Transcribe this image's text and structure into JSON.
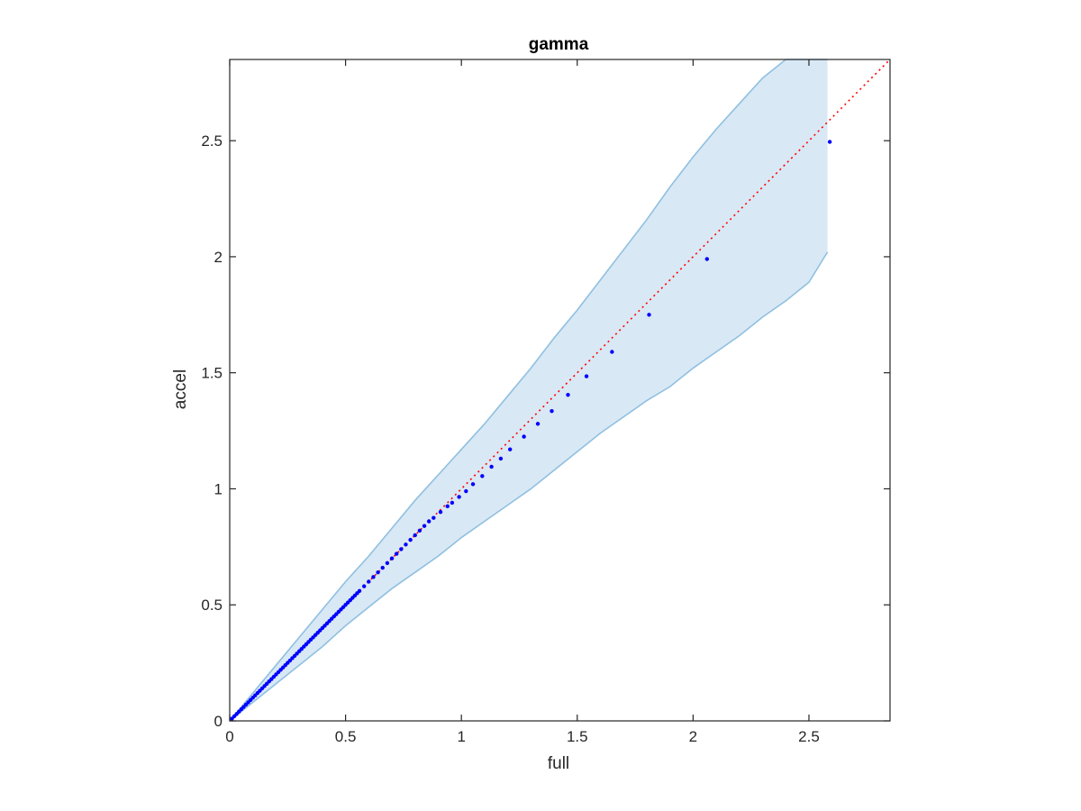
{
  "chart_data": {
    "type": "scatter",
    "title": "gamma",
    "xlabel": "full",
    "ylabel": "accel",
    "xlim": [
      0,
      2.85
    ],
    "ylim": [
      0,
      2.85
    ],
    "xticks": [
      0,
      0.5,
      1,
      1.5,
      2,
      2.5
    ],
    "yticks": [
      0,
      0.5,
      1,
      1.5,
      2,
      2.5
    ],
    "xticklabels": [
      "0",
      "0.5",
      "1",
      "1.5",
      "2",
      "2.5"
    ],
    "yticklabels": [
      "0",
      "0.5",
      "1",
      "1.5",
      "2",
      "2.5"
    ],
    "grid": false,
    "box": true,
    "colors": {
      "points": "#0000ff",
      "reference_line": "#ff0000",
      "band_fill": "#d9e8f5",
      "band_edge": "#8fc0e0",
      "axes": "#262626"
    },
    "reference_line": {
      "style": "dotted",
      "x": [
        0,
        2.85
      ],
      "y": [
        0,
        2.85
      ]
    },
    "band": {
      "x": [
        0,
        0.1,
        0.2,
        0.3,
        0.4,
        0.5,
        0.6,
        0.7,
        0.8,
        0.9,
        1.0,
        1.1,
        1.2,
        1.3,
        1.4,
        1.5,
        1.6,
        1.7,
        1.8,
        1.9,
        2.0,
        2.1,
        2.2,
        2.3,
        2.4,
        2.5,
        2.58
      ],
      "upper": [
        0,
        0.12,
        0.24,
        0.36,
        0.48,
        0.6,
        0.71,
        0.83,
        0.95,
        1.06,
        1.17,
        1.28,
        1.4,
        1.52,
        1.65,
        1.77,
        1.9,
        2.03,
        2.16,
        2.3,
        2.43,
        2.55,
        2.66,
        2.77,
        2.85,
        2.85,
        2.85
      ],
      "lower": [
        0,
        0.08,
        0.16,
        0.24,
        0.32,
        0.41,
        0.49,
        0.57,
        0.64,
        0.71,
        0.79,
        0.86,
        0.93,
        1.0,
        1.08,
        1.16,
        1.24,
        1.31,
        1.38,
        1.44,
        1.52,
        1.59,
        1.66,
        1.74,
        1.81,
        1.89,
        2.02
      ]
    },
    "points": {
      "x": [
        0.01,
        0.02,
        0.03,
        0.04,
        0.05,
        0.06,
        0.07,
        0.08,
        0.09,
        0.1,
        0.11,
        0.12,
        0.13,
        0.14,
        0.15,
        0.16,
        0.17,
        0.18,
        0.19,
        0.2,
        0.21,
        0.22,
        0.23,
        0.24,
        0.25,
        0.26,
        0.27,
        0.28,
        0.29,
        0.3,
        0.31,
        0.32,
        0.33,
        0.34,
        0.35,
        0.36,
        0.37,
        0.38,
        0.39,
        0.4,
        0.41,
        0.42,
        0.43,
        0.44,
        0.45,
        0.46,
        0.47,
        0.48,
        0.49,
        0.5,
        0.51,
        0.52,
        0.53,
        0.54,
        0.55,
        0.56,
        0.58,
        0.6,
        0.62,
        0.64,
        0.66,
        0.68,
        0.7,
        0.72,
        0.74,
        0.76,
        0.78,
        0.8,
        0.82,
        0.84,
        0.86,
        0.88,
        0.91,
        0.94,
        0.96,
        0.99,
        1.02,
        1.05,
        1.09,
        1.13,
        1.17,
        1.21,
        1.27,
        1.33,
        1.39,
        1.46,
        1.54,
        1.65,
        1.81,
        2.06,
        2.59
      ],
      "y": [
        0.01,
        0.02,
        0.03,
        0.04,
        0.05,
        0.06,
        0.07,
        0.08,
        0.09,
        0.1,
        0.11,
        0.12,
        0.13,
        0.14,
        0.15,
        0.16,
        0.17,
        0.18,
        0.19,
        0.2,
        0.21,
        0.22,
        0.23,
        0.24,
        0.25,
        0.26,
        0.27,
        0.28,
        0.29,
        0.3,
        0.31,
        0.32,
        0.33,
        0.34,
        0.35,
        0.36,
        0.37,
        0.38,
        0.39,
        0.4,
        0.41,
        0.42,
        0.43,
        0.44,
        0.45,
        0.46,
        0.47,
        0.48,
        0.49,
        0.5,
        0.51,
        0.52,
        0.53,
        0.54,
        0.55,
        0.56,
        0.58,
        0.6,
        0.62,
        0.64,
        0.66,
        0.68,
        0.7,
        0.72,
        0.74,
        0.76,
        0.78,
        0.8,
        0.82,
        0.84,
        0.86,
        0.875,
        0.9,
        0.925,
        0.94,
        0.965,
        0.99,
        1.02,
        1.055,
        1.095,
        1.13,
        1.17,
        1.225,
        1.28,
        1.335,
        1.405,
        1.485,
        1.59,
        1.75,
        1.99,
        2.495
      ]
    }
  }
}
